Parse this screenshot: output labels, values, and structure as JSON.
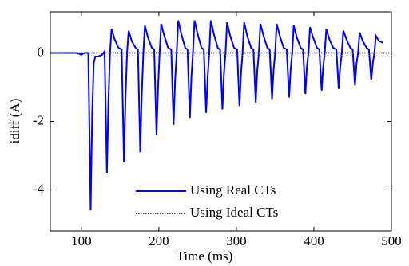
{
  "chart_data": {
    "type": "line",
    "xlabel": "Time (ms)",
    "ylabel": "idiff (A)",
    "xlim": [
      60,
      500
    ],
    "ylim": [
      -5.2,
      1.2
    ],
    "xticks": [
      100,
      200,
      300,
      400,
      500
    ],
    "yticks": [
      -4,
      -2,
      0
    ],
    "legend": "lower center",
    "series": [
      {
        "name": "Using Real CTs",
        "color": "#0000ff",
        "style": "solid",
        "x": [
          60,
          95,
          100,
          104,
          109,
          112,
          114,
          116,
          118,
          122,
          127,
          130,
          133,
          135,
          137,
          139,
          143,
          148,
          152,
          155,
          157,
          159,
          161,
          165,
          170,
          173,
          176,
          178,
          180,
          182,
          186,
          191,
          194,
          197,
          199,
          201,
          203,
          207,
          212,
          216,
          219,
          221,
          223,
          225,
          229,
          234,
          237,
          240,
          242,
          244,
          246,
          250,
          255,
          258,
          261,
          263,
          265,
          267,
          271,
          276,
          279,
          282,
          284,
          286,
          288,
          292,
          297,
          301,
          304,
          306,
          308,
          310,
          314,
          319,
          322,
          325,
          327,
          329,
          331,
          335,
          340,
          343,
          346,
          348,
          350,
          352,
          356,
          361,
          365,
          368,
          370,
          372,
          374,
          378,
          383,
          386,
          389,
          391,
          393,
          395,
          399,
          404,
          407,
          410,
          412,
          414,
          416,
          420,
          425,
          429,
          432,
          434,
          436,
          438,
          442,
          447,
          450,
          453,
          455,
          457,
          459,
          463,
          468,
          471,
          474,
          476,
          478,
          480,
          484,
          489
        ],
        "values": [
          0,
          0,
          -0.05,
          0,
          0,
          -4.6,
          -1.8,
          -0.3,
          -0.1,
          -0.1,
          -0.05,
          0.05,
          -3.5,
          -1.4,
          0,
          0.7,
          0.4,
          0.15,
          0.1,
          -3.2,
          -1.3,
          0,
          0.65,
          0.35,
          0.15,
          0.1,
          -2.9,
          -1.2,
          0,
          0.8,
          0.45,
          0.15,
          0.1,
          -2.4,
          -1,
          0,
          0.85,
          0.5,
          0.15,
          0.1,
          -2.1,
          -0.8,
          0,
          0.95,
          0.55,
          0.15,
          0.1,
          -1.9,
          -0.7,
          0,
          0.95,
          0.55,
          0.15,
          0.1,
          -1.75,
          -0.7,
          0,
          0.95,
          0.55,
          0.15,
          0.1,
          -1.65,
          -0.6,
          0,
          0.9,
          0.5,
          0.15,
          0.1,
          -1.55,
          -0.6,
          0,
          0.9,
          0.5,
          0.15,
          0.1,
          -1.45,
          -0.5,
          0,
          0.85,
          0.5,
          0.15,
          0.1,
          -1.35,
          -0.5,
          0,
          0.85,
          0.5,
          0.15,
          0.1,
          -1.3,
          -0.5,
          0,
          0.8,
          0.45,
          0.15,
          0.1,
          -1.2,
          -0.4,
          0,
          0.75,
          0.45,
          0.15,
          0.1,
          -1.1,
          -0.4,
          0,
          0.7,
          0.4,
          0.15,
          0.1,
          -1.05,
          -0.4,
          0,
          0.65,
          0.4,
          0.15,
          0.1,
          -0.95,
          -0.3,
          0,
          0.6,
          0.35,
          0.15,
          0.1,
          -0.8,
          -0.3,
          0,
          0.5,
          0.35,
          0.3
        ]
      },
      {
        "name": "Using Ideal CTs",
        "color": "#000000",
        "style": "dotted",
        "x": [
          60,
          500
        ],
        "values": [
          0,
          0
        ]
      }
    ]
  }
}
